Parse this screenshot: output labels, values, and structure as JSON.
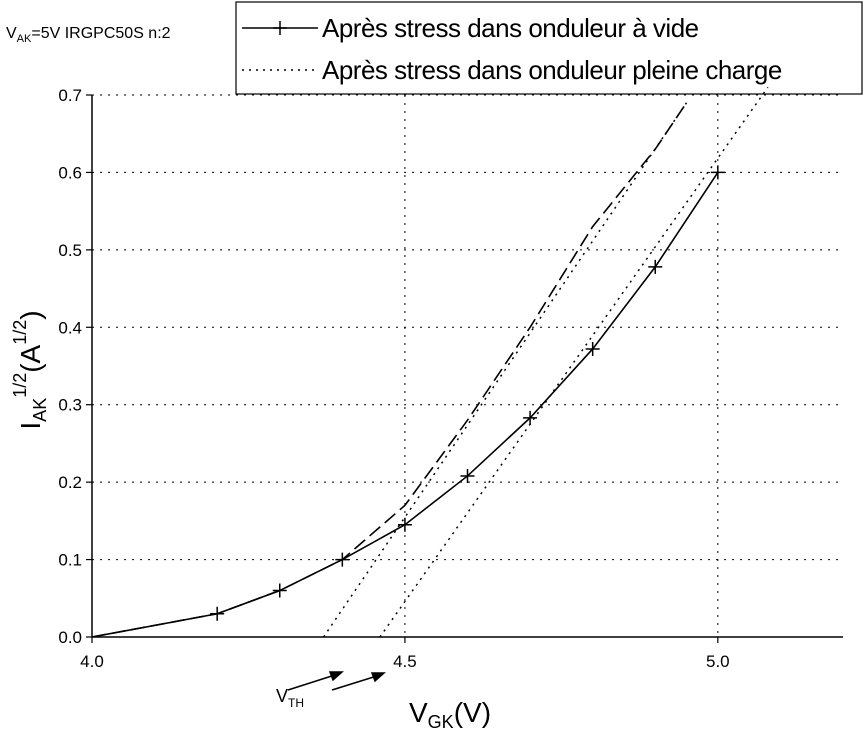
{
  "chart_data": {
    "type": "line",
    "annotation_parts": [
      "V",
      "AK",
      "=5V IRGPC50S n:2"
    ],
    "x_label_parts": [
      "V",
      "GK",
      "(V)"
    ],
    "y_label_parts": [
      "I",
      "AK",
      "1/2",
      "(A",
      "1/2",
      ")"
    ],
    "threshold_parts": [
      "V",
      "TH"
    ],
    "series": [
      {
        "name": "Après stress dans onduleur à vide",
        "color": "#000000",
        "style": "solid",
        "marker": "cross",
        "x": [
          4.0,
          4.2,
          4.3,
          4.4,
          4.5,
          4.6,
          4.7,
          4.8,
          4.9,
          5.0
        ],
        "values": [
          0.0,
          0.03,
          0.06,
          0.1,
          0.145,
          0.208,
          0.283,
          0.372,
          0.478,
          0.6
        ]
      },
      {
        "name": "Après stress dans onduleur pleine charge",
        "color": "#000000",
        "style": "dashed",
        "x": [
          4.0,
          4.2,
          4.3,
          4.4,
          4.5,
          4.6,
          4.7,
          4.8,
          4.9,
          4.95
        ],
        "values": [
          0.0,
          0.03,
          0.06,
          0.1,
          0.17,
          0.28,
          0.4,
          0.53,
          0.63,
          0.69
        ]
      }
    ],
    "extrapolations": [
      {
        "x": [
          4.37,
          4.95
        ],
        "values": [
          0.0,
          0.69
        ]
      },
      {
        "x": [
          4.46,
          5.08
        ],
        "values": [
          0.0,
          0.71
        ]
      }
    ],
    "xlim": [
      4.0,
      5.2
    ],
    "xticks": [
      {
        "value": 4.0,
        "label": "4.0"
      },
      4.5,
      {
        "value": 5.0,
        "label": "5.0"
      }
    ],
    "ylim": [
      0,
      0.7
    ],
    "yticks": [
      {
        "value": 0,
        "label": "0.0"
      },
      0.1,
      0.2,
      0.3,
      0.4,
      0.5,
      0.6,
      0.7
    ],
    "grid": true
  }
}
